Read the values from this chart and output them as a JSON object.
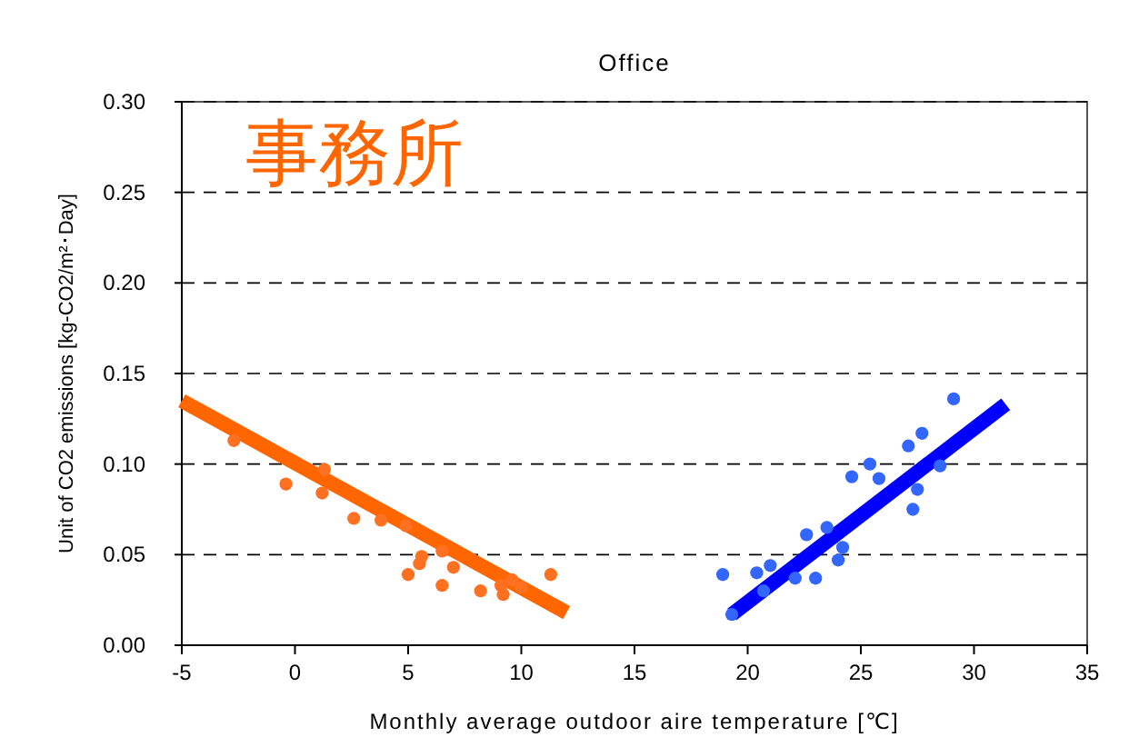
{
  "chart_data": {
    "type": "scatter",
    "title": "Office",
    "xlabel": "Monthly average outdoor aire temperature  [℃]",
    "ylabel": "Unit of CO2 emissions [kg-CO2/m²･Day]",
    "annotations": [
      "事務所"
    ],
    "xlim": [
      -5,
      35
    ],
    "xticks": [
      -5,
      0,
      5,
      10,
      15,
      20,
      25,
      30,
      35
    ],
    "ylim": [
      0,
      0.3
    ],
    "yticks": [
      {
        "value": 0,
        "label": "0.00"
      },
      {
        "value": 0.05,
        "label": "0.05"
      },
      {
        "value": 0.1,
        "label": "0.10"
      },
      {
        "value": 0.15,
        "label": "0.15"
      },
      {
        "value": 0.2,
        "label": "0.20"
      },
      {
        "value": 0.25,
        "label": "0.25"
      },
      {
        "value": 0.3,
        "label": "0.30"
      }
    ],
    "grid": "y",
    "series": [
      {
        "marker": "circle",
        "color": "#ff7020",
        "x": [
          -2.7,
          -0.4,
          1.3,
          1.2,
          2.6,
          3.8,
          4.9,
          5.0,
          5.5,
          6.5,
          6.5,
          7.0,
          8.2,
          9.1,
          9.2,
          10.0,
          11.3,
          5.6,
          9.6
        ],
        "values": [
          0.113,
          0.089,
          0.097,
          0.084,
          0.07,
          0.069,
          0.066,
          0.039,
          0.045,
          0.052,
          0.033,
          0.043,
          0.03,
          0.033,
          0.028,
          0.032,
          0.039,
          0.049,
          0.036
        ]
      },
      {
        "marker": "circle",
        "color": "#3366ff",
        "x": [
          18.9,
          20.4,
          21.0,
          20.7,
          22.1,
          23.0,
          22.6,
          23.5,
          24.2,
          24.0,
          24.6,
          25.4,
          25.8,
          27.1,
          27.7,
          27.3,
          28.5,
          29.1,
          27.5,
          19.3
        ],
        "values": [
          0.039,
          0.04,
          0.044,
          0.03,
          0.037,
          0.037,
          0.061,
          0.065,
          0.054,
          0.047,
          0.093,
          0.1,
          0.092,
          0.11,
          0.117,
          0.075,
          0.099,
          0.136,
          0.086,
          0.017
        ]
      },
      {
        "type": "line",
        "marker": "none",
        "line_style": "solid",
        "color": "#ff6600",
        "x": [
          -5,
          12
        ],
        "values": [
          0.135,
          0.018
        ]
      },
      {
        "type": "line",
        "marker": "none",
        "line_style": "solid",
        "color": "#0000ff",
        "x": [
          19.3,
          31.4
        ],
        "values": [
          0.017,
          0.133
        ]
      }
    ]
  }
}
